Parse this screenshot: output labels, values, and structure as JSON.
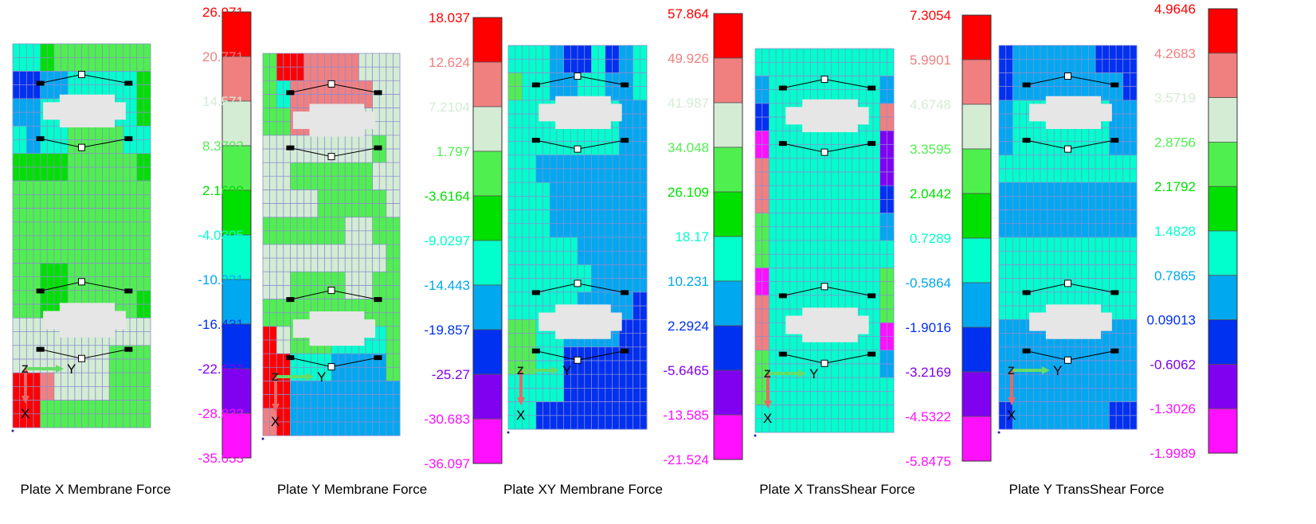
{
  "palette": [
    "#ff0000",
    "#f08080",
    "#d4ecd4",
    "#50ef50",
    "#00e000",
    "#00ffcc",
    "#00a8f0",
    "#0030f0",
    "#8000f0",
    "#ff10ff"
  ],
  "grid_colors": {
    "gray": "#e6e6e6",
    "line": "#8c8ccf"
  },
  "axis_colors": {
    "y_arrow": "#66dd66",
    "x_arrow": "#ee6666"
  },
  "panels": [
    {
      "id": "plate-x-membrane",
      "caption": "Plate X Membrane Force",
      "labels": [
        "26.971",
        "20.771",
        "14.571",
        "8.3703",
        "2.1699",
        "-4.0305",
        "-10.231",
        "-16.431",
        "-22.632",
        "-28.832",
        "-35.033"
      ],
      "axis": {
        "z": "Z",
        "y": "Y",
        "x": "X"
      },
      "cells": [
        "5543333333",
        "7766555554",
        "6655555554",
        "5655333355",
        "4444333334",
        "3333333333",
        "3333333333",
        "3333333333",
        "3344333333",
        "3344333334",
        "2222222222",
        "2222222333",
        "0012222333",
        "0033333333"
      ]
    },
    {
      "id": "plate-y-membrane",
      "caption": "Plate Y Membrane Force",
      "labels": [
        "18.037",
        "12.624",
        "7.2104",
        "1.797",
        "-3.6164",
        "-9.0297",
        "-14.443",
        "-19.857",
        "-25.27",
        "-30.683",
        "-36.097"
      ],
      "axis": {
        "z": "Z",
        "y": "Y",
        "x": "X"
      },
      "cells": [
        "3001111222",
        "3511111122",
        "3311111222",
        "2222222232",
        "2233333322",
        "2222333332",
        "3333332233",
        "2222222223",
        "2233332233",
        "3333333333",
        "0233355553",
        "0055566663",
        "0066666666",
        "1066666666"
      ]
    },
    {
      "id": "plate-xy-membrane",
      "caption": "Plate XY Membrane Force",
      "labels": [
        "57.864",
        "49.926",
        "41.987",
        "34.048",
        "26.109",
        "18.17",
        "10.231",
        "2.2924",
        "-5.6465",
        "-13.585",
        "-21.524"
      ],
      "axis": {
        "z": "Z",
        "y": "Y",
        "x": "X"
      },
      "cells": [
        "5556775765",
        "3556655665",
        "5555555566",
        "5555555566",
        "5566666666",
        "5556666666",
        "5556666666",
        "5555566666",
        "5555556666",
        "5555566667",
        "3355666677",
        "3355777777",
        "5555777777",
        "5577777777"
      ]
    },
    {
      "id": "plate-x-transshear",
      "caption": "Plate X TransShear Force",
      "labels": [
        "7.3054",
        "5.9901",
        "4.6748",
        "3.3595",
        "2.0442",
        "0.7289",
        "-0.5864",
        "-1.9016",
        "-3.2169",
        "-4.5322",
        "-5.8475"
      ],
      "axis": {
        "z": "Z",
        "y": "Y",
        "x": "X"
      },
      "cells": [
        "5555555555",
        "6555555556",
        "7555555551",
        "9555555558",
        "1555555558",
        "1555555557",
        "3555555556",
        "3555555555",
        "9555555553",
        "1555555553",
        "1555555559",
        "3555555556",
        "3555555555",
        "5555555555"
      ]
    },
    {
      "id": "plate-y-transshear",
      "caption": "Plate Y TransShear Force",
      "labels": [
        "4.9646",
        "4.2683",
        "3.5719",
        "2.8756",
        "2.1792",
        "1.4828",
        "0.7865",
        "0.09013",
        "-0.6062",
        "-1.3026",
        "-1.9989"
      ],
      "axis": {
        "z": "Z",
        "y": "Y",
        "x": "X"
      },
      "cells": [
        "7666666777",
        "7666666667",
        "6555555566",
        "6555555566",
        "5555555555",
        "6666666666",
        "6666666666",
        "5555555555",
        "5555555555",
        "5555555555",
        "6666666666",
        "6666666666",
        "6666666666",
        "7666666677"
      ]
    }
  ]
}
